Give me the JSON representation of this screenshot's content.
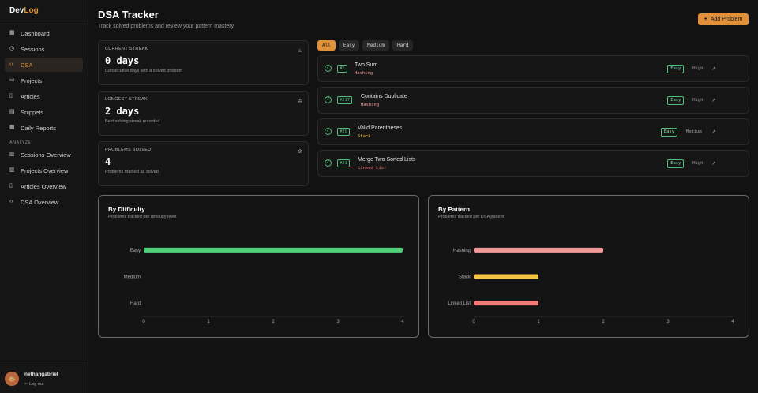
{
  "brand": {
    "part1": "Dev",
    "part2": "Log"
  },
  "sidebar": {
    "items": [
      {
        "label": "Dashboard",
        "icon": "grid-icon"
      },
      {
        "label": "Sessions",
        "icon": "clock-icon"
      },
      {
        "label": "DSA",
        "icon": "code-icon"
      },
      {
        "label": "Projects",
        "icon": "folder-icon"
      },
      {
        "label": "Articles",
        "icon": "book-icon"
      },
      {
        "label": "Snippets",
        "icon": "file-icon"
      },
      {
        "label": "Daily Reports",
        "icon": "calendar-icon"
      }
    ],
    "section_label": "ANALYZE",
    "analyze_items": [
      {
        "label": "Sessions Overview",
        "icon": "chart-icon"
      },
      {
        "label": "Projects Overview",
        "icon": "chart-icon"
      },
      {
        "label": "Articles Overview",
        "icon": "book-icon"
      },
      {
        "label": "DSA Overview",
        "icon": "code-icon"
      }
    ]
  },
  "user": {
    "name": "nethangabriel",
    "logout": "Log out"
  },
  "header": {
    "title": "DSA Tracker",
    "subtitle": "Track solved problems and review your pattern mastery",
    "add_button": "Add Problem"
  },
  "stats": [
    {
      "label": "CURRENT STREAK",
      "value": "0 days",
      "desc": "Consecutive days with a solved problem",
      "icon": "flame-icon"
    },
    {
      "label": "LONGEST STREAK",
      "value": "2 days",
      "desc": "Best solving streak recorded",
      "icon": "trophy-icon"
    },
    {
      "label": "PROBLEMS SOLVED",
      "value": "4",
      "desc": "Problems marked as solved",
      "icon": "check-circle-icon"
    }
  ],
  "filters": [
    "All",
    "Easy",
    "Medium",
    "Hard"
  ],
  "problems": [
    {
      "num": "#1",
      "name": "Two Sum",
      "pattern": "Hashing",
      "difficulty": "Easy",
      "confidence": "High"
    },
    {
      "num": "#217",
      "name": "Contains Duplicate",
      "pattern": "Hashing",
      "difficulty": "Easy",
      "confidence": "High"
    },
    {
      "num": "#20",
      "name": "Valid Parentheses",
      "pattern": "Stack",
      "difficulty": "Easy",
      "confidence": "Medium"
    },
    {
      "num": "#21",
      "name": "Merge Two Sorted Lists",
      "pattern": "Linked List",
      "difficulty": "Easy",
      "confidence": "High"
    }
  ],
  "colors": {
    "accent": "#e0913a",
    "easy": "#4fd17a",
    "hashing": "#f29a9a",
    "stack": "#f4c542",
    "linked": "#f07a7a"
  },
  "chart_data": [
    {
      "type": "bar",
      "title": "By Difficulty",
      "subtitle": "Problems tracked per difficulty level",
      "categories": [
        "Easy",
        "Medium",
        "Hard"
      ],
      "values": [
        4,
        0,
        0
      ],
      "xticks": [
        "0",
        "1",
        "2",
        "3",
        "4"
      ],
      "xlim": [
        0,
        4
      ]
    },
    {
      "type": "bar",
      "title": "By Pattern",
      "subtitle": "Problems tracked per DSA pattern",
      "categories": [
        "Hashing",
        "Stack",
        "Linked List"
      ],
      "values": [
        2,
        1,
        1
      ],
      "xticks": [
        "0",
        "1",
        "2",
        "3",
        "4"
      ],
      "xlim": [
        0,
        4
      ]
    }
  ]
}
